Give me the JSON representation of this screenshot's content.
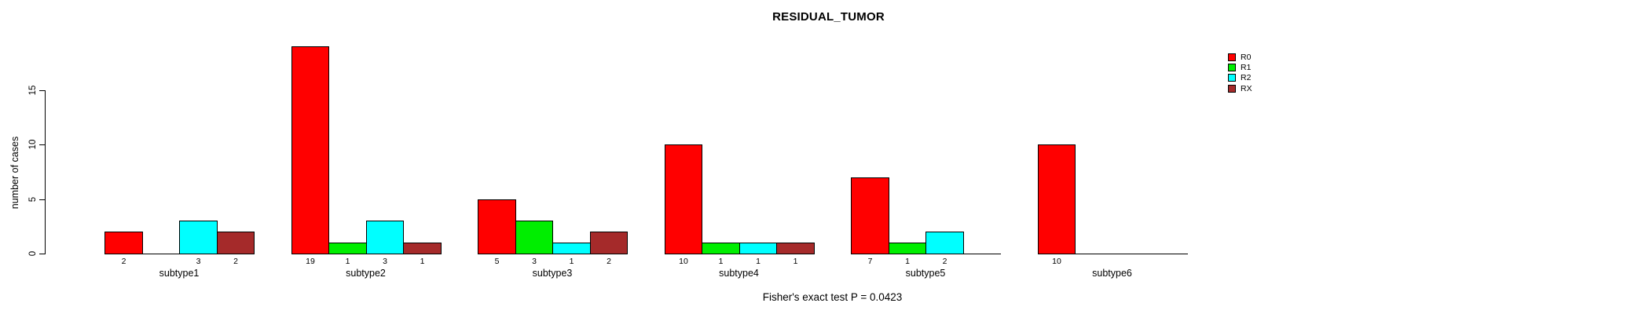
{
  "title": "RESIDUAL_TUMOR",
  "footer": "Fisher's exact test P = 0.0423",
  "chart_data": {
    "type": "bar",
    "title": "RESIDUAL_TUMOR",
    "xlabel": "",
    "ylabel": "number of cases",
    "categories": [
      "subtype1",
      "subtype2",
      "subtype3",
      "subtype4",
      "subtype5",
      "subtype6"
    ],
    "series": [
      {
        "name": "R0",
        "color": "#ff0000",
        "values": [
          2,
          19,
          5,
          10,
          7,
          10
        ]
      },
      {
        "name": "R1",
        "color": "#00ee00",
        "values": [
          0,
          1,
          3,
          1,
          1,
          0
        ]
      },
      {
        "name": "R2",
        "color": "#00ffff",
        "values": [
          3,
          3,
          1,
          1,
          2,
          0
        ]
      },
      {
        "name": "RX",
        "color": "#a52a2a",
        "values": [
          2,
          1,
          2,
          1,
          0,
          0
        ]
      }
    ],
    "yticks": [
      0,
      5,
      10,
      15
    ],
    "ylim": [
      0,
      19
    ],
    "grid": false,
    "legend_position": "top-right",
    "value_labels": "count shown under each nonzero bar",
    "annotation": "Fisher's exact test P = 0.0423"
  }
}
